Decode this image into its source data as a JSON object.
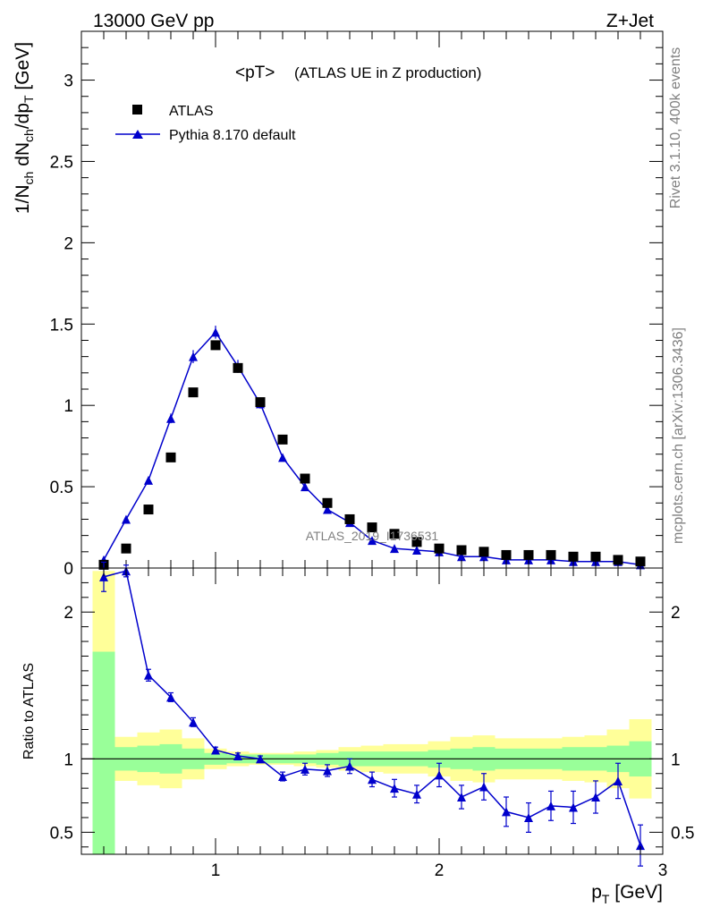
{
  "header": {
    "left": "13000 GeV pp",
    "right": "Z+Jet"
  },
  "side_labels": {
    "top": "Rivet 3.1.10,  400k events",
    "bottom": "mcplots.cern.ch [arXiv:1306.3436]"
  },
  "watermark": "ATLAS_2019_I1736531",
  "chart_data": [
    {
      "type": "scatter",
      "title": "<pT> (ATLAS UE in Z production)",
      "title_main": "<pT>",
      "title_sub": "(ATLAS UE in Z production)",
      "ylabel": "1/N_ch dN_ch/dp_T [GeV]",
      "ylim": [
        0,
        3.3
      ],
      "xlim": [
        0.4,
        3.0
      ],
      "yticks": [
        0,
        0.5,
        1,
        1.5,
        2,
        2.5,
        3
      ],
      "ytick_labels": [
        "0",
        "0.5",
        "1",
        "1.5",
        "2",
        "2.5",
        "3"
      ],
      "legend_placement": "top-left",
      "series": [
        {
          "name": "ATLAS",
          "marker": "square",
          "color": "#000000",
          "x": [
            0.5,
            0.6,
            0.7,
            0.8,
            0.9,
            1.0,
            1.1,
            1.2,
            1.3,
            1.4,
            1.5,
            1.6,
            1.7,
            1.8,
            1.9,
            2.0,
            2.1,
            2.2,
            2.3,
            2.4,
            2.5,
            2.6,
            2.7,
            2.8,
            2.9
          ],
          "y": [
            0.02,
            0.12,
            0.36,
            0.68,
            1.08,
            1.37,
            1.23,
            1.02,
            0.79,
            0.55,
            0.4,
            0.3,
            0.25,
            0.21,
            0.16,
            0.12,
            0.11,
            0.1,
            0.08,
            0.08,
            0.08,
            0.07,
            0.07,
            0.05,
            0.04
          ]
        },
        {
          "name": "Pythia 8.170 default",
          "marker": "triangle",
          "color": "#0000cc",
          "x": [
            0.5,
            0.6,
            0.7,
            0.8,
            0.9,
            1.0,
            1.1,
            1.2,
            1.3,
            1.4,
            1.5,
            1.6,
            1.7,
            1.8,
            1.9,
            2.0,
            2.1,
            2.2,
            2.3,
            2.4,
            2.5,
            2.6,
            2.7,
            2.8,
            2.9
          ],
          "y": [
            0.05,
            0.3,
            0.54,
            0.92,
            1.3,
            1.45,
            1.24,
            1.01,
            0.68,
            0.5,
            0.36,
            0.28,
            0.17,
            0.12,
            0.11,
            0.1,
            0.07,
            0.07,
            0.05,
            0.05,
            0.05,
            0.04,
            0.04,
            0.04,
            0.02
          ],
          "err": [
            0.01,
            0.01,
            0.02,
            0.03,
            0.04,
            0.04,
            0.04,
            0.03,
            0.02,
            0.02,
            0.02,
            0.01,
            0.01,
            0.01,
            0.01,
            0.01,
            0.01,
            0.01,
            0.01,
            0.01,
            0.01,
            0.01,
            0.01,
            0.01,
            0.01
          ]
        }
      ]
    },
    {
      "type": "line",
      "ylabel": "Ratio to ATLAS",
      "xlabel": "p_T [GeV]",
      "ylim": [
        0.35,
        2.3
      ],
      "xlim": [
        0.4,
        3.0
      ],
      "xticks": [
        1,
        2,
        3
      ],
      "xtick_labels": [
        "1",
        "2",
        "3"
      ],
      "yticks": [
        0.5,
        1,
        2
      ],
      "ytick_labels": [
        "0.5",
        "1",
        "2"
      ],
      "reference_line": 1,
      "band_colors": {
        "inner": "#99ff99",
        "outer": "#ffff99"
      },
      "bands": {
        "x_edges": [
          0.45,
          0.55,
          0.65,
          0.75,
          0.85,
          0.95,
          1.05,
          1.15,
          1.25,
          1.35,
          1.45,
          1.55,
          1.65,
          1.75,
          1.85,
          1.95,
          2.05,
          2.15,
          2.25,
          2.35,
          2.45,
          2.55,
          2.65,
          2.75,
          2.85,
          2.95
        ],
        "outer_lo": [
          0.35,
          0.85,
          0.82,
          0.8,
          0.86,
          0.93,
          0.95,
          0.96,
          0.96,
          0.95,
          0.94,
          0.92,
          0.91,
          0.9,
          0.9,
          0.88,
          0.85,
          0.84,
          0.86,
          0.86,
          0.86,
          0.85,
          0.84,
          0.8,
          0.73,
          0.78
        ],
        "outer_hi": [
          2.28,
          1.15,
          1.18,
          1.2,
          1.14,
          1.07,
          1.05,
          1.04,
          1.04,
          1.05,
          1.06,
          1.08,
          1.09,
          1.1,
          1.1,
          1.12,
          1.15,
          1.16,
          1.14,
          1.14,
          1.14,
          1.15,
          1.16,
          1.2,
          1.27,
          1.22
        ],
        "inner_lo": [
          0.35,
          0.92,
          0.91,
          0.9,
          0.93,
          0.96,
          0.97,
          0.97,
          0.97,
          0.97,
          0.96,
          0.95,
          0.95,
          0.95,
          0.95,
          0.94,
          0.93,
          0.92,
          0.93,
          0.93,
          0.93,
          0.92,
          0.92,
          0.91,
          0.88,
          0.9
        ],
        "inner_hi": [
          1.73,
          1.08,
          1.09,
          1.1,
          1.07,
          1.04,
          1.03,
          1.03,
          1.03,
          1.03,
          1.04,
          1.05,
          1.05,
          1.05,
          1.05,
          1.06,
          1.07,
          1.08,
          1.07,
          1.07,
          1.07,
          1.08,
          1.08,
          1.09,
          1.12,
          1.1
        ]
      },
      "series": [
        {
          "name": "Pythia 8.170 default",
          "color": "#0000cc",
          "x": [
            0.5,
            0.6,
            0.7,
            0.8,
            0.9,
            1.0,
            1.1,
            1.2,
            1.3,
            1.4,
            1.5,
            1.6,
            1.7,
            1.8,
            1.9,
            2.0,
            2.1,
            2.2,
            2.3,
            2.4,
            2.5,
            2.6,
            2.7,
            2.8,
            2.9
          ],
          "y": [
            2.24,
            2.28,
            1.57,
            1.42,
            1.25,
            1.06,
            1.02,
            1.0,
            0.88,
            0.93,
            0.92,
            0.95,
            0.86,
            0.8,
            0.76,
            0.89,
            0.74,
            0.81,
            0.64,
            0.6,
            0.68,
            0.67,
            0.74,
            0.85,
            0.41
          ],
          "err": [
            0.1,
            0.04,
            0.04,
            0.03,
            0.03,
            0.02,
            0.02,
            0.02,
            0.03,
            0.04,
            0.04,
            0.05,
            0.05,
            0.06,
            0.06,
            0.08,
            0.08,
            0.09,
            0.1,
            0.1,
            0.1,
            0.11,
            0.11,
            0.12,
            0.14
          ]
        }
      ]
    }
  ]
}
